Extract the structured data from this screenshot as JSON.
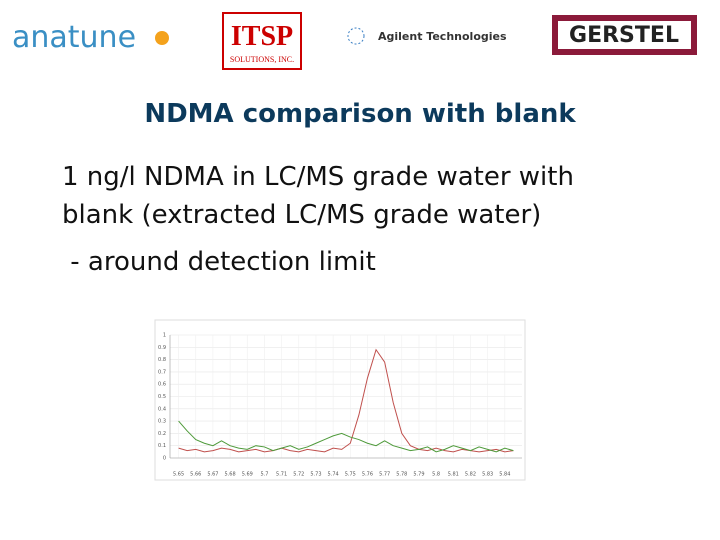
{
  "logos": {
    "anatune": "anatune",
    "itsp": "ITSP",
    "itsp_sub": "SOLUTIONS, INC.",
    "agilent": "Agilent Technologies",
    "gerstel": "GERSTEL"
  },
  "title": "NDMA comparison with blank",
  "body": [
    "1 ng/l NDMA in LC/MS grade water with",
    "blank (extracted LC/MS grade water)",
    " - around detection limit"
  ],
  "chart_data": {
    "type": "line",
    "x": [
      5.65,
      5.655,
      5.66,
      5.665,
      5.67,
      5.675,
      5.68,
      5.685,
      5.69,
      5.695,
      5.7,
      5.705,
      5.71,
      5.715,
      5.72,
      5.725,
      5.73,
      5.735,
      5.74,
      5.745,
      5.75,
      5.755,
      5.76,
      5.765,
      5.77,
      5.775,
      5.78,
      5.785,
      5.79,
      5.795,
      5.8,
      5.805,
      5.81,
      5.815,
      5.82,
      5.825,
      5.83,
      5.835,
      5.84,
      5.845
    ],
    "series": [
      {
        "color": "#c0504d",
        "values": [
          0.08,
          0.06,
          0.07,
          0.05,
          0.06,
          0.08,
          0.07,
          0.05,
          0.06,
          0.07,
          0.05,
          0.06,
          0.08,
          0.06,
          0.05,
          0.07,
          0.06,
          0.05,
          0.08,
          0.07,
          0.12,
          0.35,
          0.65,
          0.88,
          0.78,
          0.45,
          0.2,
          0.1,
          0.07,
          0.06,
          0.08,
          0.06,
          0.05,
          0.07,
          0.06,
          0.05,
          0.06,
          0.07,
          0.05,
          0.06
        ]
      },
      {
        "color": "#4e9a3a",
        "values": [
          0.3,
          0.22,
          0.15,
          0.12,
          0.1,
          0.14,
          0.1,
          0.08,
          0.07,
          0.1,
          0.09,
          0.06,
          0.08,
          0.1,
          0.07,
          0.09,
          0.12,
          0.15,
          0.18,
          0.2,
          0.17,
          0.15,
          0.12,
          0.1,
          0.14,
          0.1,
          0.08,
          0.06,
          0.07,
          0.09,
          0.05,
          0.07,
          0.1,
          0.08,
          0.06,
          0.09,
          0.07,
          0.05,
          0.08,
          0.06
        ]
      }
    ],
    "xlim": [
      5.645,
      5.85
    ],
    "ylim": [
      0,
      1
    ],
    "xticks": [
      5.65,
      5.66,
      5.67,
      5.68,
      5.69,
      5.7,
      5.71,
      5.72,
      5.73,
      5.74,
      5.75,
      5.76,
      5.77,
      5.78,
      5.79,
      5.8,
      5.81,
      5.82,
      5.83,
      5.84
    ],
    "yticks": [
      0,
      0.1,
      0.2,
      0.3,
      0.4,
      0.5,
      0.6,
      0.7,
      0.8,
      0.9,
      1
    ],
    "grid": true
  }
}
